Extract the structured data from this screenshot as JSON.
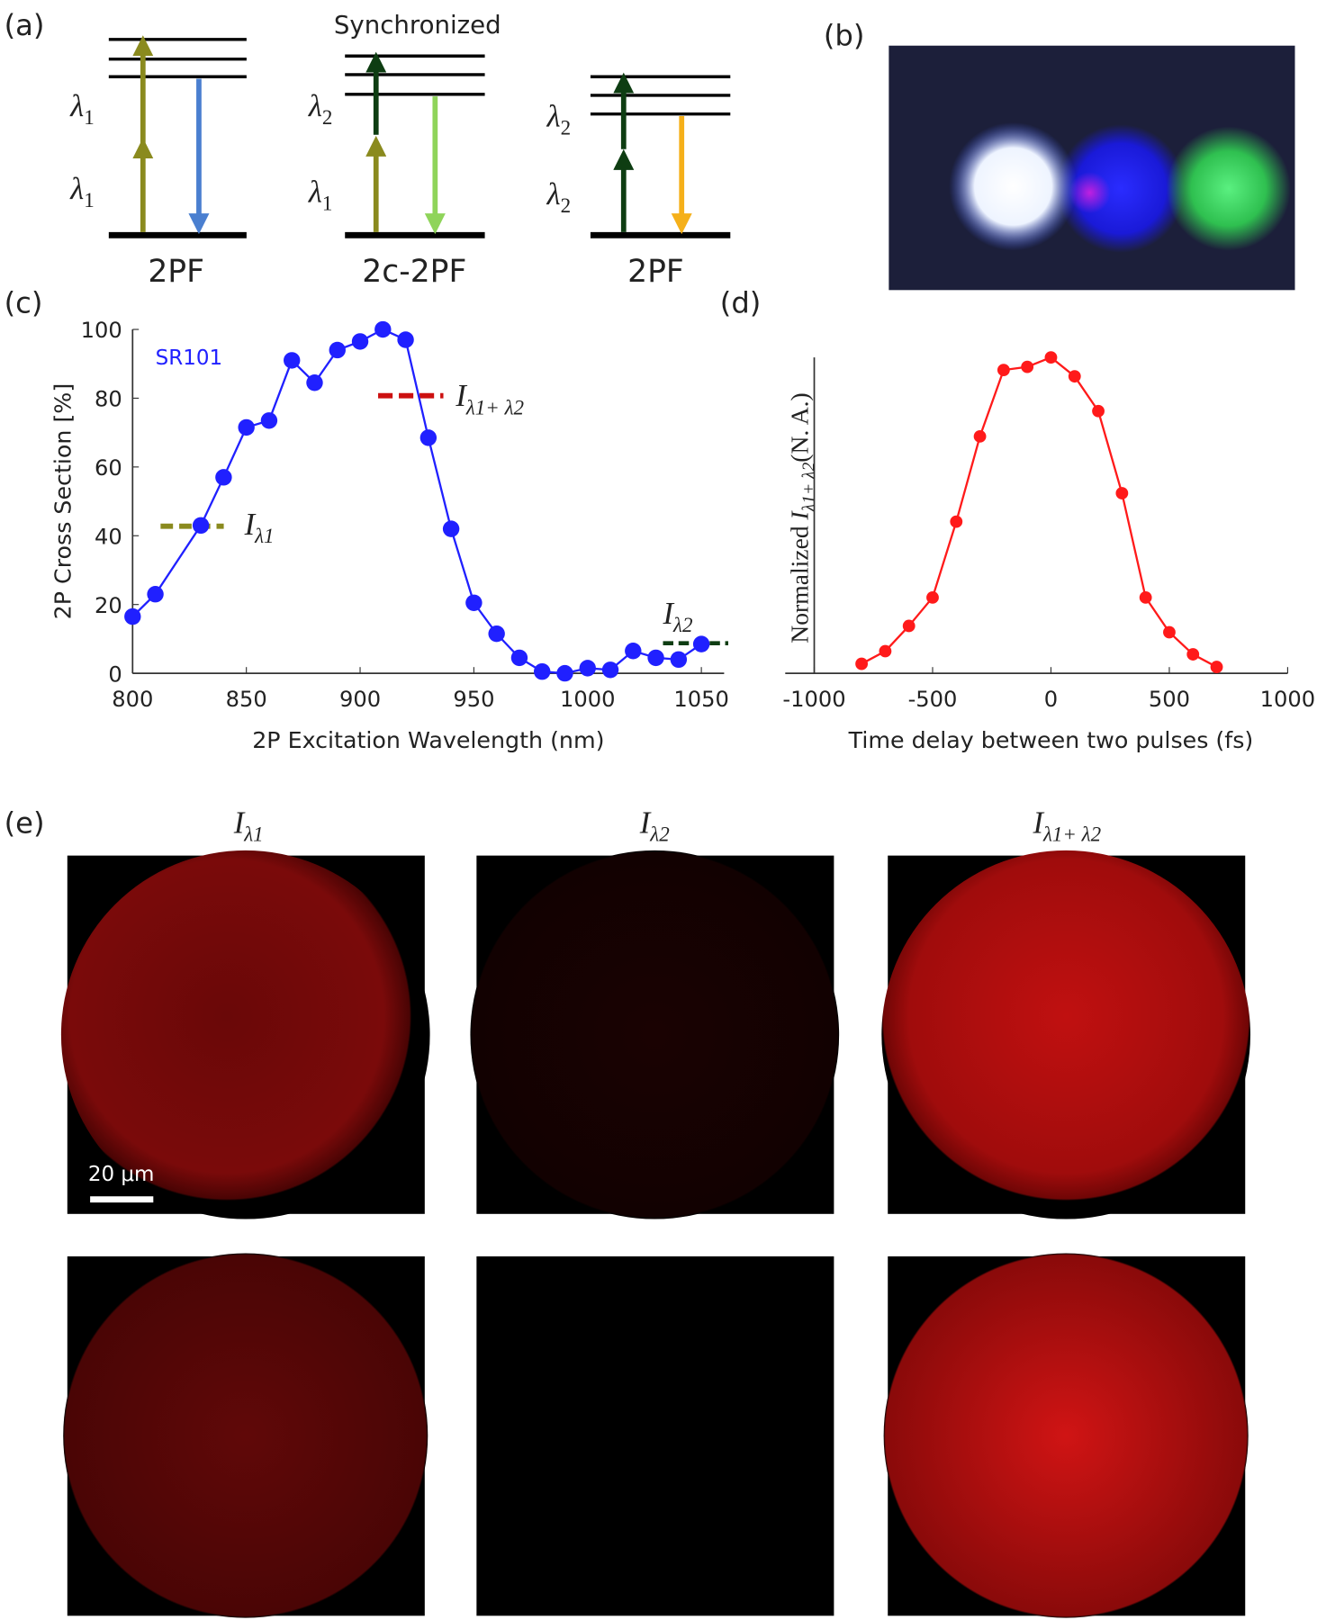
{
  "panel_labels": [
    "(a)",
    "(b)",
    "(c)",
    "(d)",
    "(e)"
  ],
  "diagram": {
    "title": "Synchronized",
    "schemes": [
      {
        "label": "2PF",
        "upper": {
          "symbol": "λ",
          "sub": "1"
        },
        "lower": {
          "symbol": "λ",
          "sub": "1"
        }
      },
      {
        "label": "2c-2PF",
        "upper": {
          "symbol": "λ",
          "sub": "2"
        },
        "lower": {
          "symbol": "λ",
          "sub": "1"
        }
      },
      {
        "label": "2PF",
        "upper": {
          "symbol": "λ",
          "sub": "2"
        },
        "lower": {
          "symbol": "λ",
          "sub": "2"
        }
      }
    ]
  },
  "chart_data": [
    {
      "type": "line",
      "color": "#2020ff",
      "annotation": "SR101",
      "levels": [
        {
          "symbol": "I",
          "sub": "λ1"
        },
        {
          "symbol": "I",
          "sub": "λ1+ λ2"
        },
        {
          "symbol": "I",
          "sub": "λ2"
        }
      ],
      "ylabel": "2P Cross Section [%]",
      "xlabel": "2P Excitation Wavelength (nm)",
      "x": [
        800,
        810,
        830,
        840,
        850,
        860,
        870,
        880,
        890,
        900,
        910,
        920,
        930,
        940,
        950,
        960,
        970,
        980,
        990,
        1000,
        1010,
        1020,
        1030,
        1040,
        1050
      ],
      "values": [
        16.5,
        23,
        43,
        57,
        71.5,
        73.5,
        91,
        84.5,
        94,
        96.5,
        100,
        97,
        68.5,
        42,
        20.5,
        11.5,
        4.5,
        0.5,
        0,
        1.5,
        1,
        6.5,
        4.5,
        4,
        8.5
      ],
      "xlim": [
        800,
        1060
      ],
      "xticks": [
        800,
        850,
        900,
        950,
        1000,
        1050
      ],
      "ylim": [
        0,
        100
      ],
      "yticks": [
        0,
        20,
        40,
        60,
        80,
        100
      ]
    },
    {
      "type": "line",
      "color": "#ff1a1a",
      "ylabel": {
        "prefix": "Normalized ",
        "symbol": "I",
        "sub": "λ1+ λ2",
        "suffix": "(N. A.)"
      },
      "xlabel": "Time delay between two pulses (fs)",
      "x": [
        -800,
        -700,
        -600,
        -500,
        -400,
        -300,
        -200,
        -100,
        0,
        100,
        200,
        300,
        400,
        500,
        600,
        700
      ],
      "values": [
        0.03,
        0.07,
        0.15,
        0.24,
        0.48,
        0.75,
        0.96,
        0.97,
        1.0,
        0.94,
        0.83,
        0.57,
        0.24,
        0.13,
        0.06,
        0.02
      ],
      "xlim": [
        -1000,
        1000
      ],
      "xticks": [
        -1000,
        -500,
        0,
        500,
        1000
      ],
      "ylim": [
        0,
        1
      ]
    }
  ],
  "images": {
    "column_labels": [
      {
        "symbol": "I",
        "sub": "λ1"
      },
      {
        "symbol": "I",
        "sub": "λ2"
      },
      {
        "symbol": "I",
        "sub": "λ1+ λ2"
      }
    ],
    "scale_bar": "20 μm"
  }
}
